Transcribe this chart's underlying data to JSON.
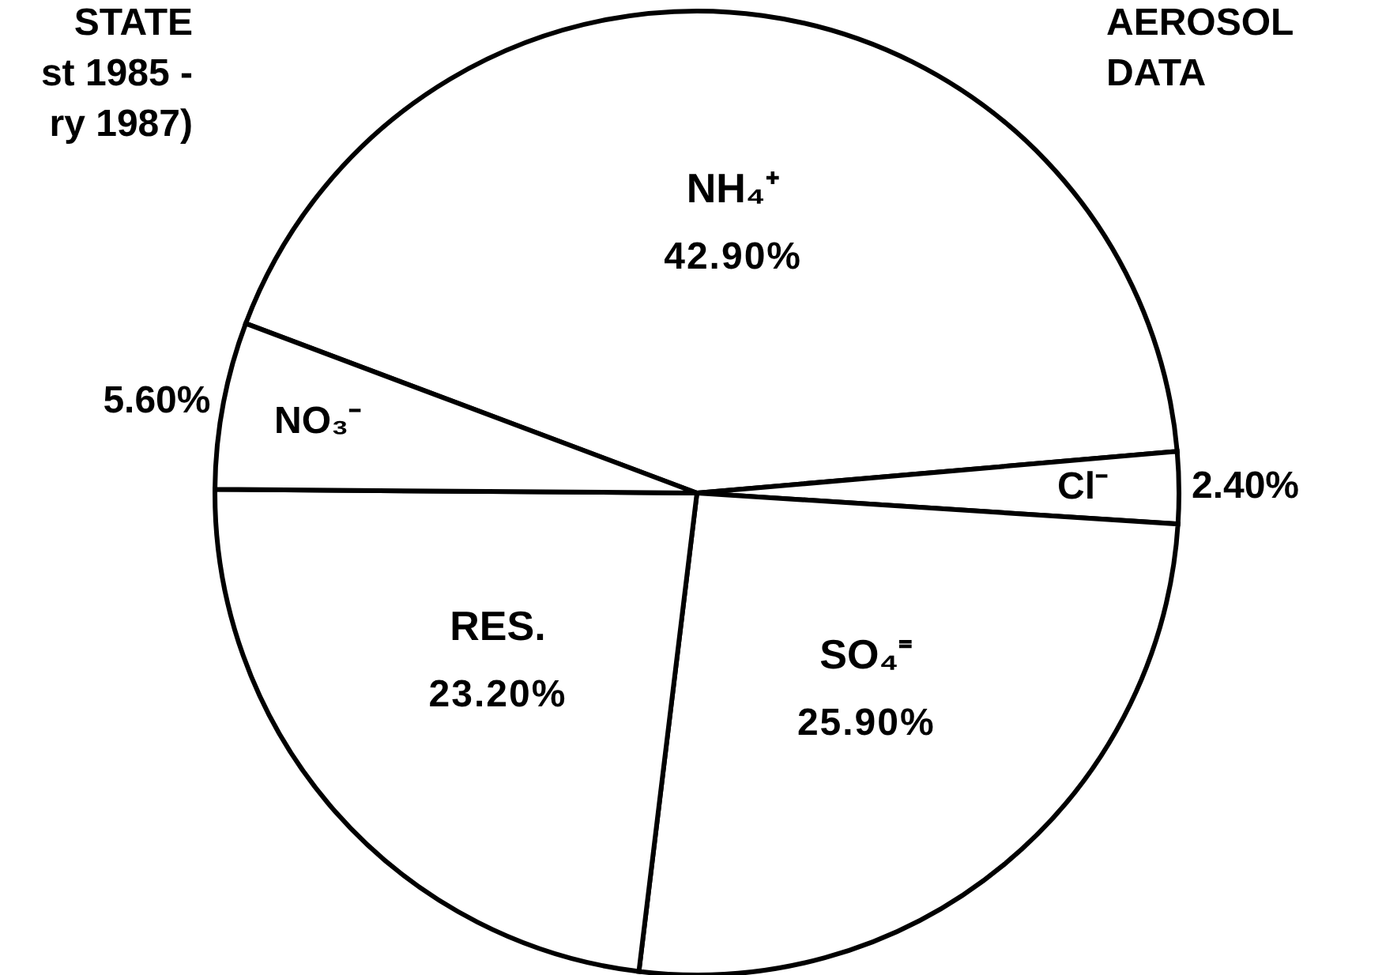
{
  "chart_data": {
    "type": "pie",
    "title": "AEROSOL DATA",
    "annotations": [
      "STATE",
      "st 1985 -",
      "ry 1987)"
    ],
    "categories": [
      "NH₄⁺",
      "Cl⁻",
      "SO₄⁼",
      "RES.",
      "NO₃⁻"
    ],
    "values": [
      42.9,
      2.4,
      25.9,
      23.2,
      5.6
    ],
    "value_labels": [
      "42.90%",
      "2.40%",
      "25.90%",
      "23.20%",
      "5.60%"
    ],
    "colors": [
      "#ffffff",
      "#ffffff",
      "#ffffff",
      "#ffffff",
      "#ffffff"
    ]
  }
}
